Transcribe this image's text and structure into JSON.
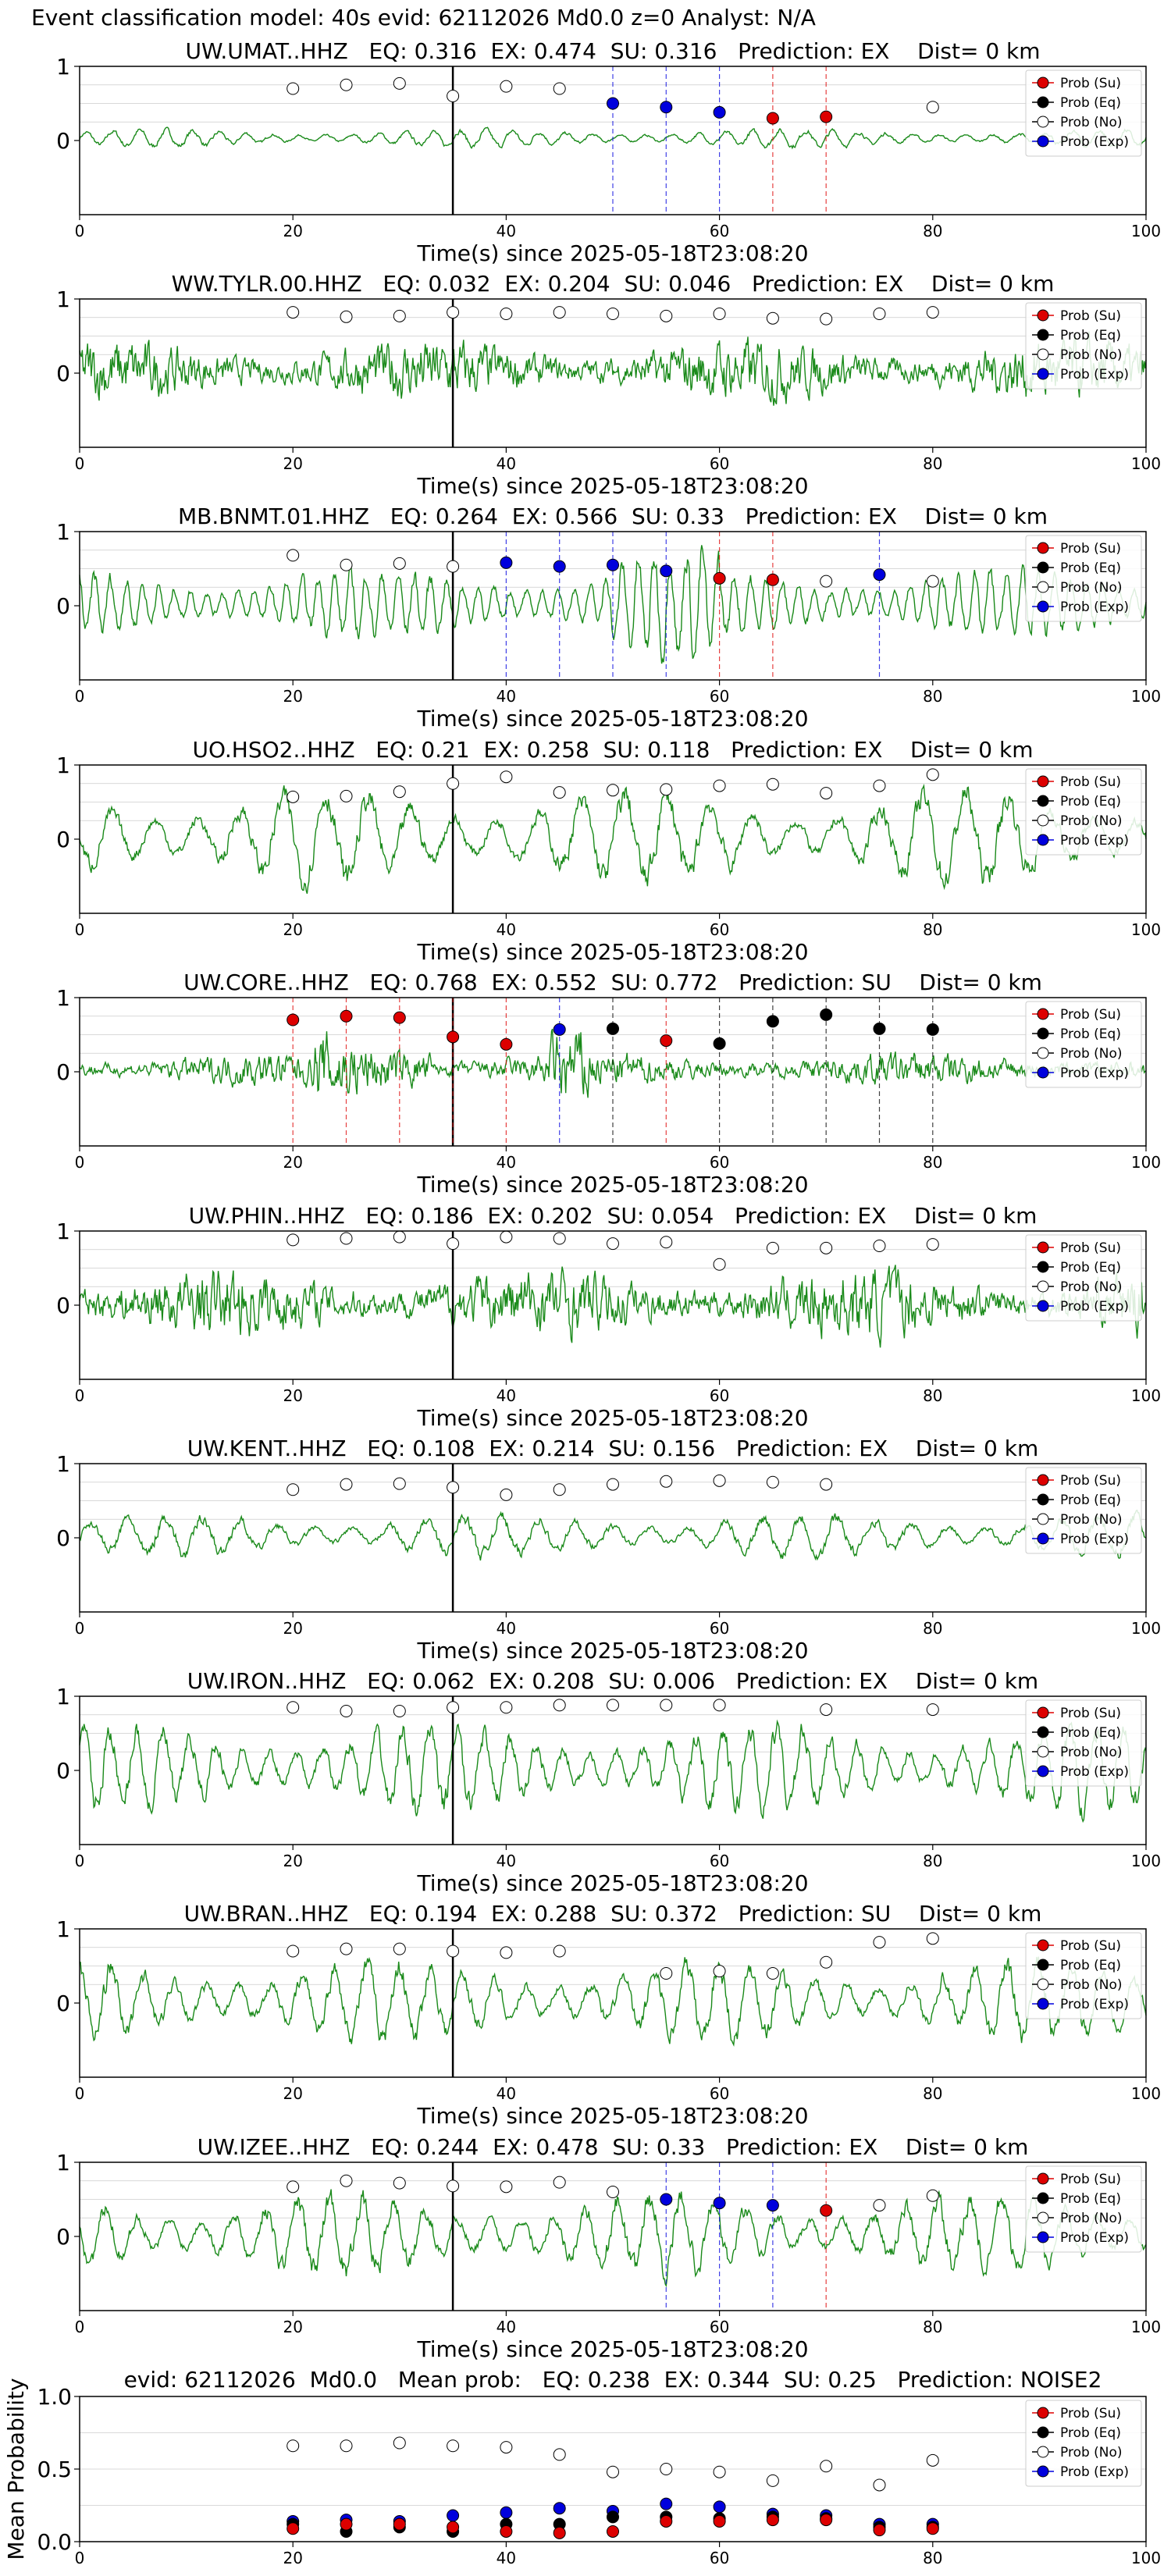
{
  "page_title": "Event classification model: 40s evid: 62112026 Md0.0 z=0 Analyst: N/A",
  "legend_labels": [
    "Prob (Su)",
    "Prob (Eq)",
    "Prob (No)",
    "Prob (Exp)"
  ],
  "colors": {
    "su": "#dd0000",
    "eq": "#000000",
    "no": "#ffffff",
    "exp": "#0000dd",
    "waveform": "#1a8a1a",
    "grid": "#cccccc"
  },
  "chart_data": [
    {
      "type": "line+scatter",
      "title": "UW.UMAT..HHZ   EQ: 0.316  EX: 0.474  SU: 0.316   Prediction: EX    Dist= 0 km",
      "xlabel": "Time(s) since 2025-05-18T23:08:20",
      "ylabel": "",
      "xlim": [
        0,
        100
      ],
      "ylim": [
        -1,
        1
      ],
      "xticks": [
        0,
        20,
        40,
        60,
        80,
        100
      ],
      "yticks": [
        0,
        1
      ],
      "grid": "y",
      "signal_onset": 35,
      "waveform_amplitude": 0.12,
      "waveform_period": 2.5,
      "windows": [
        {
          "t": 20,
          "class": "no",
          "value": 0.7
        },
        {
          "t": 25,
          "class": "no",
          "value": 0.75
        },
        {
          "t": 30,
          "class": "no",
          "value": 0.77
        },
        {
          "t": 35,
          "class": "no",
          "value": 0.6
        },
        {
          "t": 40,
          "class": "no",
          "value": 0.73
        },
        {
          "t": 45,
          "class": "no",
          "value": 0.7
        },
        {
          "t": 50,
          "class": "exp",
          "value": 0.5
        },
        {
          "t": 55,
          "class": "exp",
          "value": 0.45
        },
        {
          "t": 60,
          "class": "exp",
          "value": 0.38
        },
        {
          "t": 65,
          "class": "su",
          "value": 0.3
        },
        {
          "t": 70,
          "class": "su",
          "value": 0.32
        },
        {
          "t": 80,
          "class": "no",
          "value": 0.45
        }
      ]
    },
    {
      "type": "line+scatter",
      "title": "WW.TYLR.00.HHZ   EQ: 0.032  EX: 0.204  SU: 0.046   Prediction: EX    Dist= 0 km",
      "xlabel": "Time(s) since 2025-05-18T23:08:20",
      "ylabel": "",
      "xlim": [
        0,
        100
      ],
      "ylim": [
        -1,
        1
      ],
      "xticks": [
        0,
        20,
        40,
        60,
        80,
        100
      ],
      "yticks": [
        0,
        1
      ],
      "grid": "y",
      "signal_onset": 35,
      "waveform_amplitude": 0.45,
      "waveform_period": 0.6,
      "windows": [
        {
          "t": 20,
          "class": "no",
          "value": 0.82
        },
        {
          "t": 25,
          "class": "no",
          "value": 0.76
        },
        {
          "t": 30,
          "class": "no",
          "value": 0.77
        },
        {
          "t": 35,
          "class": "no",
          "value": 0.82
        },
        {
          "t": 40,
          "class": "no",
          "value": 0.8
        },
        {
          "t": 45,
          "class": "no",
          "value": 0.82
        },
        {
          "t": 50,
          "class": "no",
          "value": 0.8
        },
        {
          "t": 55,
          "class": "no",
          "value": 0.77
        },
        {
          "t": 60,
          "class": "no",
          "value": 0.8
        },
        {
          "t": 65,
          "class": "no",
          "value": 0.74
        },
        {
          "t": 70,
          "class": "no",
          "value": 0.73
        },
        {
          "t": 75,
          "class": "no",
          "value": 0.8
        },
        {
          "t": 80,
          "class": "no",
          "value": 0.82
        }
      ]
    },
    {
      "type": "line+scatter",
      "title": "MB.BNMT.01.HHZ   EQ: 0.264  EX: 0.566  SU: 0.33   Prediction: EX    Dist= 0 km",
      "xlabel": "Time(s) since 2025-05-18T23:08:20",
      "ylabel": "",
      "xlim": [
        0,
        100
      ],
      "ylim": [
        -1,
        1
      ],
      "xticks": [
        0,
        20,
        40,
        60,
        80,
        100
      ],
      "yticks": [
        0,
        1
      ],
      "grid": "y",
      "signal_onset": 35,
      "waveform_amplitude": 0.45,
      "waveform_period": 1.5,
      "windows": [
        {
          "t": 20,
          "class": "no",
          "value": 0.68
        },
        {
          "t": 25,
          "class": "no",
          "value": 0.55
        },
        {
          "t": 30,
          "class": "no",
          "value": 0.57
        },
        {
          "t": 35,
          "class": "no",
          "value": 0.53
        },
        {
          "t": 40,
          "class": "exp",
          "value": 0.58
        },
        {
          "t": 45,
          "class": "exp",
          "value": 0.53
        },
        {
          "t": 50,
          "class": "exp",
          "value": 0.55
        },
        {
          "t": 55,
          "class": "exp",
          "value": 0.47
        },
        {
          "t": 60,
          "class": "su",
          "value": 0.37
        },
        {
          "t": 65,
          "class": "su",
          "value": 0.35
        },
        {
          "t": 70,
          "class": "no",
          "value": 0.33
        },
        {
          "t": 75,
          "class": "exp",
          "value": 0.42
        },
        {
          "t": 80,
          "class": "no",
          "value": 0.33
        }
      ]
    },
    {
      "type": "line+scatter",
      "title": "UO.HSO2..HHZ   EQ: 0.21  EX: 0.258  SU: 0.118   Prediction: EX    Dist= 0 km",
      "xlabel": "Time(s) since 2025-05-18T23:08:20",
      "ylabel": "",
      "xlim": [
        0,
        100
      ],
      "ylim": [
        -1,
        1
      ],
      "xticks": [
        0,
        20,
        40,
        60,
        80,
        100
      ],
      "yticks": [
        0,
        1
      ],
      "grid": "y",
      "signal_onset": 35,
      "waveform_amplitude": 0.65,
      "waveform_period": 4,
      "windows": [
        {
          "t": 20,
          "class": "no",
          "value": 0.57
        },
        {
          "t": 25,
          "class": "no",
          "value": 0.58
        },
        {
          "t": 30,
          "class": "no",
          "value": 0.64
        },
        {
          "t": 35,
          "class": "no",
          "value": 0.75
        },
        {
          "t": 40,
          "class": "no",
          "value": 0.84
        },
        {
          "t": 45,
          "class": "no",
          "value": 0.63
        },
        {
          "t": 50,
          "class": "no",
          "value": 0.66
        },
        {
          "t": 55,
          "class": "no",
          "value": 0.67
        },
        {
          "t": 60,
          "class": "no",
          "value": 0.72
        },
        {
          "t": 65,
          "class": "no",
          "value": 0.74
        },
        {
          "t": 70,
          "class": "no",
          "value": 0.62
        },
        {
          "t": 75,
          "class": "no",
          "value": 0.72
        },
        {
          "t": 80,
          "class": "no",
          "value": 0.87
        }
      ]
    },
    {
      "type": "line+scatter",
      "title": "UW.CORE..HHZ   EQ: 0.768  EX: 0.552  SU: 0.772   Prediction: SU    Dist= 0 km",
      "xlabel": "Time(s) since 2025-05-18T23:08:20",
      "ylabel": "",
      "xlim": [
        0,
        100
      ],
      "ylim": [
        -1,
        1
      ],
      "xticks": [
        0,
        20,
        40,
        60,
        80,
        100
      ],
      "yticks": [
        0,
        1
      ],
      "grid": "y",
      "signal_onset": 35,
      "waveform_amplitude": 0.25,
      "waveform_period": 0.8,
      "windows": [
        {
          "t": 20,
          "class": "su",
          "value": 0.7
        },
        {
          "t": 25,
          "class": "su",
          "value": 0.75
        },
        {
          "t": 30,
          "class": "su",
          "value": 0.73
        },
        {
          "t": 35,
          "class": "su",
          "value": 0.47
        },
        {
          "t": 40,
          "class": "su",
          "value": 0.37
        },
        {
          "t": 45,
          "class": "exp",
          "value": 0.57
        },
        {
          "t": 50,
          "class": "eq",
          "value": 0.58
        },
        {
          "t": 55,
          "class": "su",
          "value": 0.42
        },
        {
          "t": 60,
          "class": "eq",
          "value": 0.38
        },
        {
          "t": 65,
          "class": "eq",
          "value": 0.68
        },
        {
          "t": 70,
          "class": "eq",
          "value": 0.77
        },
        {
          "t": 75,
          "class": "eq",
          "value": 0.58
        },
        {
          "t": 80,
          "class": "eq",
          "value": 0.57
        }
      ]
    },
    {
      "type": "line+scatter",
      "title": "UW.PHIN..HHZ   EQ: 0.186  EX: 0.202  SU: 0.054   Prediction: EX    Dist= 0 km",
      "xlabel": "Time(s) since 2025-05-18T23:08:20",
      "ylabel": "",
      "xlim": [
        0,
        100
      ],
      "ylim": [
        -1,
        1
      ],
      "xticks": [
        0,
        20,
        40,
        60,
        80,
        100
      ],
      "yticks": [
        0,
        1
      ],
      "grid": "y",
      "signal_onset": 35,
      "waveform_amplitude": 0.5,
      "waveform_period": 0.6,
      "windows": [
        {
          "t": 20,
          "class": "no",
          "value": 0.88
        },
        {
          "t": 25,
          "class": "no",
          "value": 0.9
        },
        {
          "t": 30,
          "class": "no",
          "value": 0.92
        },
        {
          "t": 35,
          "class": "no",
          "value": 0.83
        },
        {
          "t": 40,
          "class": "no",
          "value": 0.92
        },
        {
          "t": 45,
          "class": "no",
          "value": 0.9
        },
        {
          "t": 50,
          "class": "no",
          "value": 0.83
        },
        {
          "t": 55,
          "class": "no",
          "value": 0.85
        },
        {
          "t": 60,
          "class": "no",
          "value": 0.55
        },
        {
          "t": 65,
          "class": "no",
          "value": 0.77
        },
        {
          "t": 70,
          "class": "no",
          "value": 0.77
        },
        {
          "t": 75,
          "class": "no",
          "value": 0.8
        },
        {
          "t": 80,
          "class": "no",
          "value": 0.82
        }
      ]
    },
    {
      "type": "line+scatter",
      "title": "UW.KENT..HHZ   EQ: 0.108  EX: 0.214  SU: 0.156   Prediction: EX    Dist= 0 km",
      "xlabel": "Time(s) since 2025-05-18T23:08:20",
      "ylabel": "",
      "xlim": [
        0,
        100
      ],
      "ylim": [
        -1,
        1
      ],
      "xticks": [
        0,
        20,
        40,
        60,
        80,
        100
      ],
      "yticks": [
        0,
        1
      ],
      "grid": "y",
      "signal_onset": 35,
      "waveform_amplitude": 0.3,
      "waveform_period": 3.5,
      "windows": [
        {
          "t": 20,
          "class": "no",
          "value": 0.65
        },
        {
          "t": 25,
          "class": "no",
          "value": 0.72
        },
        {
          "t": 30,
          "class": "no",
          "value": 0.73
        },
        {
          "t": 35,
          "class": "no",
          "value": 0.68
        },
        {
          "t": 40,
          "class": "no",
          "value": 0.58
        },
        {
          "t": 45,
          "class": "no",
          "value": 0.65
        },
        {
          "t": 50,
          "class": "no",
          "value": 0.72
        },
        {
          "t": 55,
          "class": "no",
          "value": 0.76
        },
        {
          "t": 60,
          "class": "no",
          "value": 0.77
        },
        {
          "t": 65,
          "class": "no",
          "value": 0.75
        },
        {
          "t": 70,
          "class": "no",
          "value": 0.72
        }
      ]
    },
    {
      "type": "line+scatter",
      "title": "UW.IRON..HHZ   EQ: 0.062  EX: 0.208  SU: 0.006   Prediction: EX    Dist= 0 km",
      "xlabel": "Time(s) since 2025-05-18T23:08:20",
      "ylabel": "",
      "xlim": [
        0,
        100
      ],
      "ylim": [
        -1,
        1
      ],
      "xticks": [
        0,
        20,
        40,
        60,
        80,
        100
      ],
      "yticks": [
        0,
        1
      ],
      "grid": "y",
      "signal_onset": 35,
      "waveform_amplitude": 0.6,
      "waveform_period": 2.5,
      "windows": [
        {
          "t": 20,
          "class": "no",
          "value": 0.85
        },
        {
          "t": 25,
          "class": "no",
          "value": 0.8
        },
        {
          "t": 30,
          "class": "no",
          "value": 0.8
        },
        {
          "t": 35,
          "class": "no",
          "value": 0.85
        },
        {
          "t": 40,
          "class": "no",
          "value": 0.85
        },
        {
          "t": 45,
          "class": "no",
          "value": 0.88
        },
        {
          "t": 50,
          "class": "no",
          "value": 0.88
        },
        {
          "t": 55,
          "class": "no",
          "value": 0.88
        },
        {
          "t": 60,
          "class": "no",
          "value": 0.88
        },
        {
          "t": 70,
          "class": "no",
          "value": 0.82
        },
        {
          "t": 80,
          "class": "no",
          "value": 0.82
        }
      ]
    },
    {
      "type": "line+scatter",
      "title": "UW.BRAN..HHZ   EQ: 0.194  EX: 0.288  SU: 0.372   Prediction: SU    Dist= 0 km",
      "xlabel": "Time(s) since 2025-05-18T23:08:20",
      "ylabel": "",
      "xlim": [
        0,
        100
      ],
      "ylim": [
        -1,
        1
      ],
      "xticks": [
        0,
        20,
        40,
        60,
        80,
        100
      ],
      "yticks": [
        0,
        1
      ],
      "grid": "y",
      "signal_onset": 35,
      "waveform_amplitude": 0.55,
      "waveform_period": 3,
      "windows": [
        {
          "t": 20,
          "class": "no",
          "value": 0.7
        },
        {
          "t": 25,
          "class": "no",
          "value": 0.73
        },
        {
          "t": 30,
          "class": "no",
          "value": 0.73
        },
        {
          "t": 35,
          "class": "no",
          "value": 0.7
        },
        {
          "t": 40,
          "class": "no",
          "value": 0.68
        },
        {
          "t": 45,
          "class": "no",
          "value": 0.7
        },
        {
          "t": 55,
          "class": "no",
          "value": 0.4
        },
        {
          "t": 60,
          "class": "no",
          "value": 0.43
        },
        {
          "t": 65,
          "class": "no",
          "value": 0.4
        },
        {
          "t": 70,
          "class": "no",
          "value": 0.55
        },
        {
          "t": 75,
          "class": "no",
          "value": 0.82
        },
        {
          "t": 80,
          "class": "no",
          "value": 0.87
        }
      ]
    },
    {
      "type": "line+scatter",
      "title": "UW.IZEE..HHZ   EQ: 0.244  EX: 0.478  SU: 0.33   Prediction: EX    Dist= 0 km",
      "xlabel": "Time(s) since 2025-05-18T23:08:20",
      "ylabel": "",
      "xlim": [
        0,
        100
      ],
      "ylim": [
        -1,
        1
      ],
      "xticks": [
        0,
        20,
        40,
        60,
        80,
        100
      ],
      "yticks": [
        0,
        1
      ],
      "grid": "y",
      "signal_onset": 35,
      "waveform_amplitude": 0.55,
      "waveform_period": 3,
      "windows": [
        {
          "t": 20,
          "class": "no",
          "value": 0.67
        },
        {
          "t": 25,
          "class": "no",
          "value": 0.75
        },
        {
          "t": 30,
          "class": "no",
          "value": 0.72
        },
        {
          "t": 35,
          "class": "no",
          "value": 0.68
        },
        {
          "t": 40,
          "class": "no",
          "value": 0.67
        },
        {
          "t": 45,
          "class": "no",
          "value": 0.73
        },
        {
          "t": 50,
          "class": "no",
          "value": 0.6
        },
        {
          "t": 55,
          "class": "exp",
          "value": 0.5
        },
        {
          "t": 60,
          "class": "exp",
          "value": 0.45
        },
        {
          "t": 65,
          "class": "exp",
          "value": 0.42
        },
        {
          "t": 70,
          "class": "su",
          "value": 0.35
        },
        {
          "t": 75,
          "class": "no",
          "value": 0.42
        },
        {
          "t": 80,
          "class": "no",
          "value": 0.55
        }
      ]
    },
    {
      "type": "scatter",
      "title": "evid: 62112026  Md0.0   Mean prob:   EQ: 0.238  EX: 0.344  SU: 0.25   Prediction: NOISE2",
      "xlabel": "",
      "ylabel": "Mean Probability",
      "xlim": [
        0,
        100
      ],
      "ylim": [
        0,
        1
      ],
      "xticks": [
        0,
        20,
        40,
        60,
        80,
        100
      ],
      "yticks": [
        0.0,
        0.5,
        1.0
      ],
      "grid": "y",
      "series": [
        {
          "class": "no",
          "x": [
            20,
            25,
            30,
            35,
            40,
            45,
            50,
            55,
            60,
            65,
            70,
            75,
            80
          ],
          "values": [
            0.66,
            0.66,
            0.68,
            0.66,
            0.65,
            0.6,
            0.48,
            0.5,
            0.48,
            0.42,
            0.52,
            0.39,
            0.56
          ]
        },
        {
          "class": "exp",
          "x": [
            20,
            25,
            30,
            35,
            40,
            45,
            50,
            55,
            60,
            65,
            70,
            75,
            80
          ],
          "values": [
            0.14,
            0.15,
            0.14,
            0.18,
            0.2,
            0.23,
            0.21,
            0.26,
            0.24,
            0.19,
            0.18,
            0.12,
            0.12
          ]
        },
        {
          "class": "eq",
          "x": [
            20,
            25,
            30,
            35,
            40,
            45,
            50,
            55,
            60,
            65,
            70,
            75,
            80
          ],
          "values": [
            0.12,
            0.07,
            0.1,
            0.07,
            0.12,
            0.12,
            0.17,
            0.17,
            0.16,
            0.17,
            0.16,
            0.1,
            0.1
          ]
        },
        {
          "class": "su",
          "x": [
            20,
            25,
            30,
            35,
            40,
            45,
            50,
            55,
            60,
            65,
            70,
            75,
            80
          ],
          "values": [
            0.09,
            0.12,
            0.12,
            0.1,
            0.07,
            0.06,
            0.07,
            0.14,
            0.14,
            0.15,
            0.15,
            0.08,
            0.09
          ]
        }
      ]
    }
  ]
}
